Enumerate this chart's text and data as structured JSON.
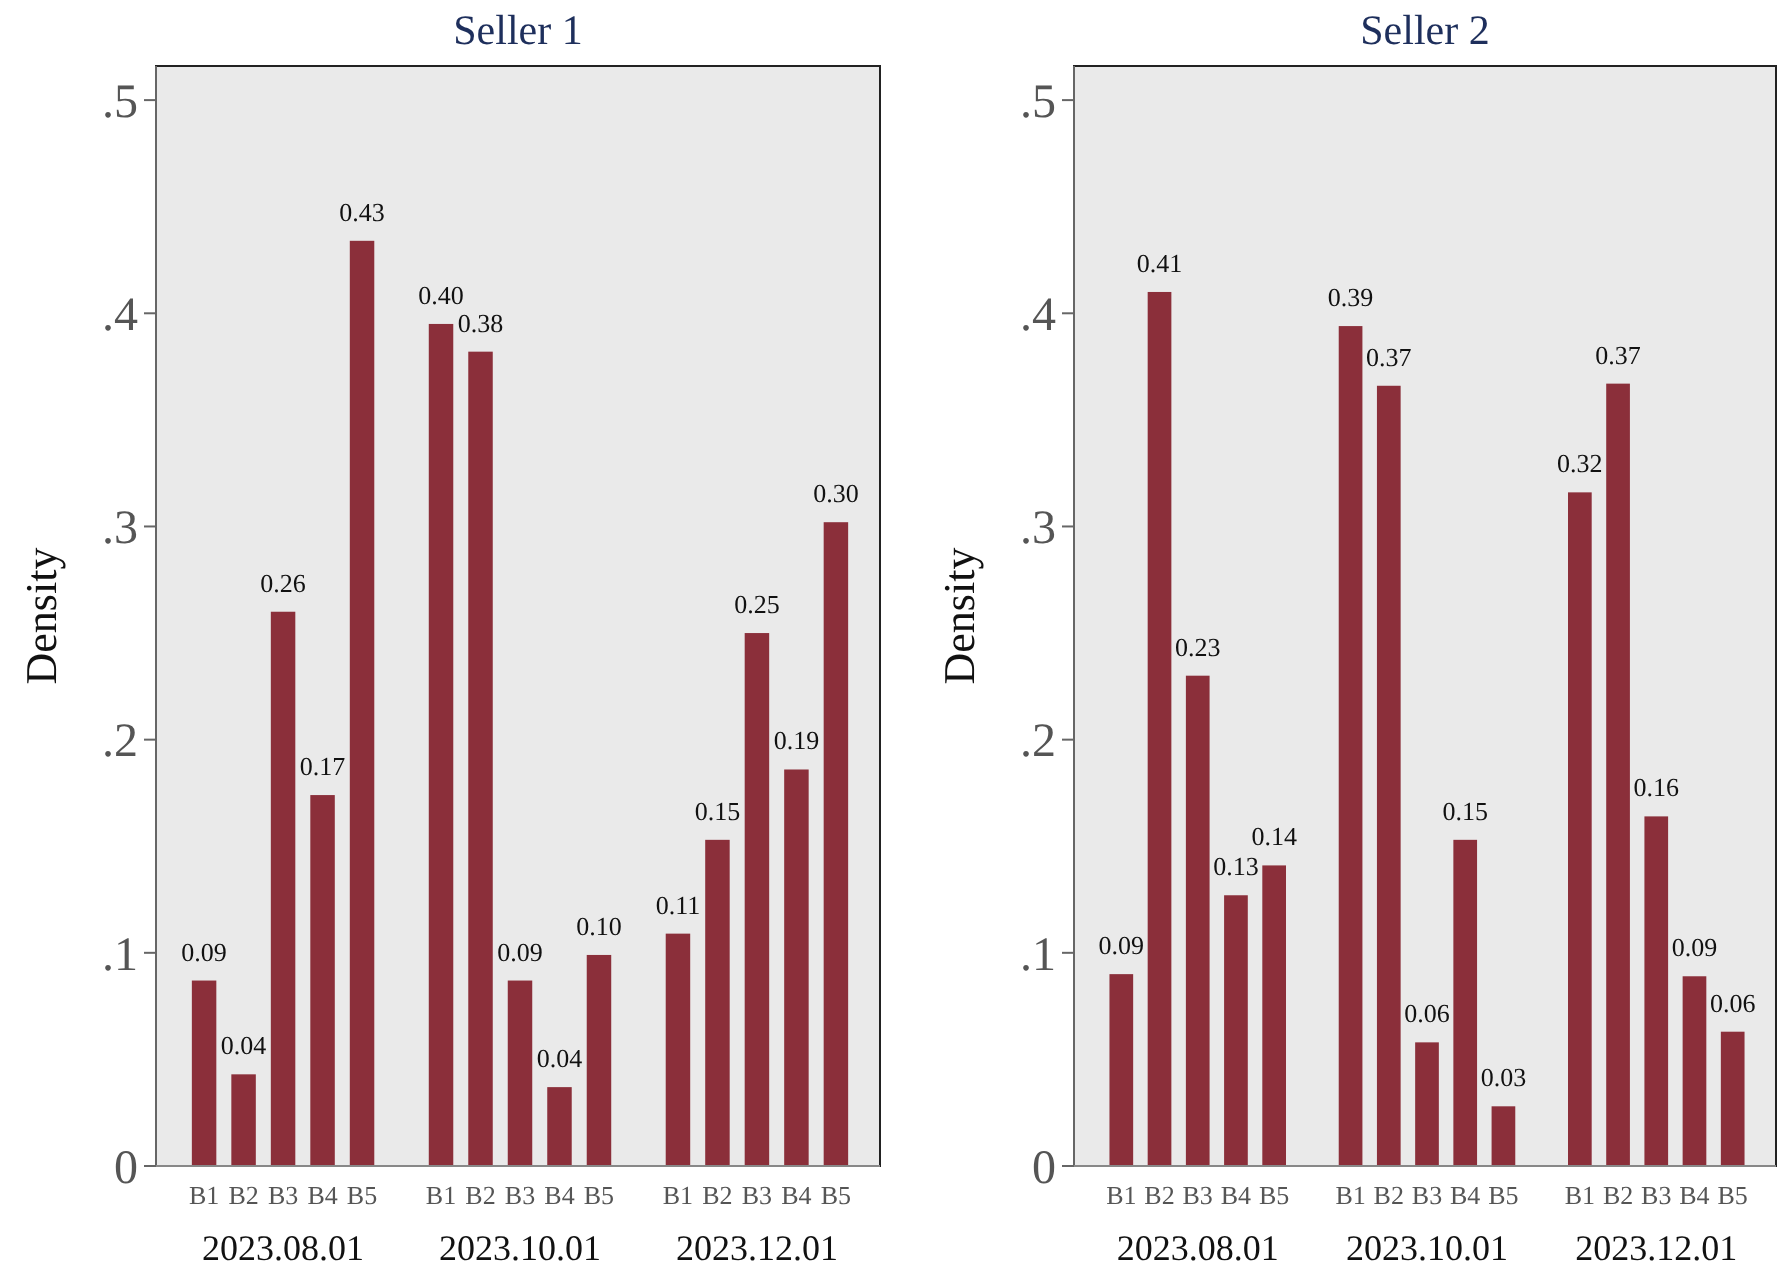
{
  "chart_data": [
    {
      "type": "bar",
      "title": "Seller 1",
      "ylabel": "Density",
      "categories": [
        "B1",
        "B2",
        "B3",
        "B4",
        "B5",
        null,
        "B1",
        "B2",
        "B3",
        "B4",
        "B5",
        null,
        "B1",
        "B2",
        "B3",
        "B4",
        "B5"
      ],
      "values": [
        0.087,
        0.043,
        0.26,
        0.174,
        0.434,
        null,
        0.395,
        0.382,
        0.087,
        0.037,
        0.099,
        null,
        0.109,
        0.153,
        0.25,
        0.186,
        0.302
      ],
      "value_labels": [
        "0.09",
        "0.04",
        "0.26",
        "0.17",
        "0.43",
        null,
        "0.40",
        "0.38",
        "0.09",
        "0.04",
        "0.10",
        null,
        "0.11",
        "0.15",
        "0.25",
        "0.19",
        "0.30"
      ],
      "color": "#8b2f3a",
      "ylim": [
        0,
        0.516
      ],
      "yticks": [
        0,
        {
          "value": 0.1,
          "label": ".1"
        },
        {
          "value": 0.2,
          "label": ".2"
        },
        {
          "value": 0.3,
          "label": ".3"
        },
        {
          "value": 0.4,
          "label": ".4"
        },
        {
          "value": 0.5,
          "label": ".5"
        }
      ],
      "annotations": [
        "2023.08.01",
        "2023.10.01",
        "2023.12.01"
      ],
      "grid": false
    },
    {
      "type": "bar",
      "title": "Seller 2",
      "ylabel": "Density",
      "categories": [
        "B1",
        "B2",
        "B3",
        "B4",
        "B5",
        null,
        "B1",
        "B2",
        "B3",
        "B4",
        "B5",
        null,
        "B1",
        "B2",
        "B3",
        "B4",
        "B5"
      ],
      "values": [
        0.09,
        0.41,
        0.23,
        0.127,
        0.141,
        null,
        0.394,
        0.366,
        0.058,
        0.153,
        0.028,
        null,
        0.316,
        0.367,
        0.164,
        0.089,
        0.063
      ],
      "value_labels": [
        "0.09",
        "0.41",
        "0.23",
        "0.13",
        "0.14",
        null,
        "0.39",
        "0.37",
        "0.06",
        "0.15",
        "0.03",
        null,
        "0.32",
        "0.37",
        "0.16",
        "0.09",
        "0.06"
      ],
      "color": "#8b2f3a",
      "ylim": [
        0,
        0.516
      ],
      "yticks": [
        0,
        {
          "value": 0.1,
          "label": ".1"
        },
        {
          "value": 0.2,
          "label": ".2"
        },
        {
          "value": 0.3,
          "label": ".3"
        },
        {
          "value": 0.4,
          "label": ".4"
        },
        {
          "value": 0.5,
          "label": ".5"
        }
      ],
      "annotations": [
        "2023.08.01",
        "2023.10.01",
        "2023.12.01"
      ],
      "grid": false
    }
  ]
}
